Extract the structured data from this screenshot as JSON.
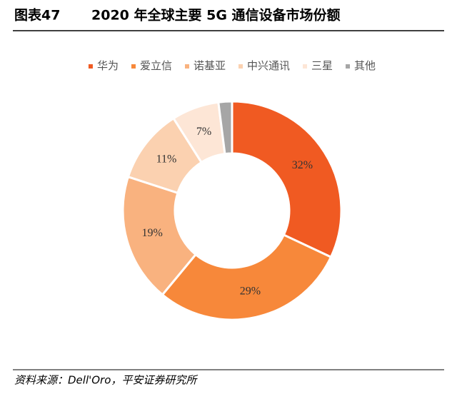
{
  "header": {
    "figure_no": "图表47",
    "title": "2020 年全球主要 5G 通信设备市场份额"
  },
  "chart_data": {
    "type": "donut",
    "categories": [
      "华为",
      "爱立信",
      "诺基亚",
      "中兴通讯",
      "三星",
      "其他"
    ],
    "values": [
      32,
      29,
      19,
      11,
      7,
      2
    ],
    "value_labels": [
      "32%",
      "29%",
      "19%",
      "11%",
      "7%",
      null
    ],
    "colors": [
      "#f05a22",
      "#f7883a",
      "#f9b27f",
      "#fbd1b0",
      "#fde6d6",
      "#a6a6a6"
    ]
  },
  "footer": {
    "source": "资料来源：Dell'Oro，平安证券研究所"
  }
}
